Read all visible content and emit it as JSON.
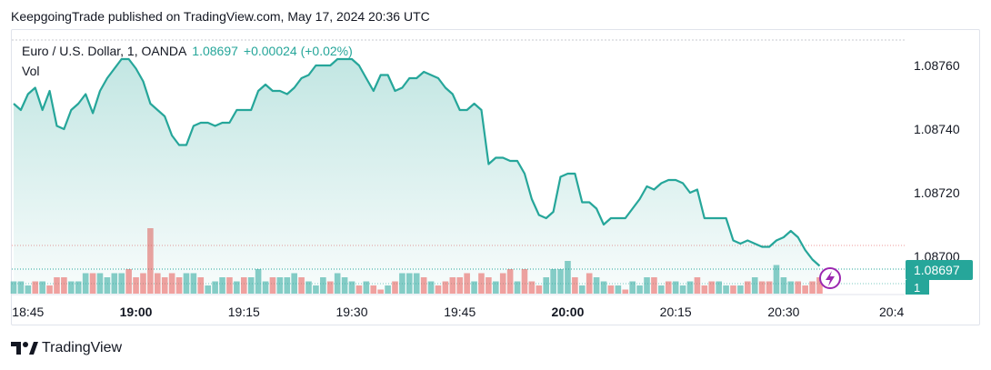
{
  "header": {
    "published": "KeepgoingTrade published on TradingView.com, May 17, 2024 20:36 UTC"
  },
  "legend": {
    "symbol": "Euro / U.S. Dollar, 1, OANDA",
    "price": "1.08697",
    "change": "+0.00024 (+0.02%)",
    "volume_label": "Vol"
  },
  "footer": {
    "brand": "TradingView",
    "logo_icon": "tradingview-logo-icon"
  },
  "colors": {
    "line": "#26a69a",
    "up": "#26a69a",
    "down": "#ef5350",
    "price_tag": "#26a69a",
    "lightning": "#9c27b0"
  },
  "chart_data": {
    "type": "area",
    "ylim": [
      1.08688,
      1.08768
    ],
    "y_ticks": [
      "1.08760",
      "1.08740",
      "1.08720",
      "1.08700"
    ],
    "x_ticks": [
      {
        "label": "18:45",
        "bold": false,
        "t": 2
      },
      {
        "label": "19:00",
        "bold": true,
        "t": 17
      },
      {
        "label": "19:15",
        "bold": false,
        "t": 32
      },
      {
        "label": "19:30",
        "bold": false,
        "t": 47
      },
      {
        "label": "19:45",
        "bold": false,
        "t": 62
      },
      {
        "label": "20:00",
        "bold": true,
        "t": 77
      },
      {
        "label": "20:15",
        "bold": false,
        "t": 92
      },
      {
        "label": "20:30",
        "bold": false,
        "t": 107
      },
      {
        "label": "20:4",
        "bold": false,
        "t": 122
      }
    ],
    "price_label": "1.08697",
    "volume_tag": "1",
    "close": [
      1.08748,
      1.08746,
      1.08751,
      1.08753,
      1.08746,
      1.08752,
      1.08741,
      1.0874,
      1.08746,
      1.08748,
      1.08751,
      1.08745,
      1.08752,
      1.08756,
      1.08759,
      1.08762,
      1.08762,
      1.08759,
      1.08755,
      1.08748,
      1.08746,
      1.08744,
      1.08738,
      1.08735,
      1.08735,
      1.08741,
      1.08742,
      1.08742,
      1.08741,
      1.08742,
      1.08742,
      1.08746,
      1.08746,
      1.08746,
      1.08752,
      1.08754,
      1.08752,
      1.08752,
      1.08751,
      1.08753,
      1.08756,
      1.08757,
      1.0876,
      1.0876,
      1.0876,
      1.08762,
      1.08762,
      1.08762,
      1.0876,
      1.08756,
      1.08752,
      1.08757,
      1.08757,
      1.08752,
      1.08753,
      1.08756,
      1.08756,
      1.08758,
      1.08757,
      1.08756,
      1.08753,
      1.08751,
      1.08746,
      1.08746,
      1.08748,
      1.08746,
      1.08729,
      1.08731,
      1.08731,
      1.0873,
      1.0873,
      1.08726,
      1.08718,
      1.08713,
      1.08712,
      1.08714,
      1.08725,
      1.08726,
      1.08726,
      1.08717,
      1.08717,
      1.08715,
      1.0871,
      1.08712,
      1.08712,
      1.08712,
      1.08715,
      1.08718,
      1.08722,
      1.08721,
      1.08723,
      1.08724,
      1.08724,
      1.08723,
      1.0872,
      1.08721,
      1.08712,
      1.08712,
      1.08712,
      1.08712,
      1.08705,
      1.08704,
      1.08705,
      1.08704,
      1.08703,
      1.08703,
      1.08705,
      1.08706,
      1.08708,
      1.08706,
      1.08702,
      1.08699,
      1.08697
    ],
    "volume": [
      3,
      3,
      2,
      3,
      3,
      2,
      4,
      4,
      3,
      3,
      5,
      5,
      5,
      4,
      5,
      5,
      6,
      4,
      5,
      16,
      5,
      4,
      5,
      4,
      5,
      5,
      4,
      2,
      3,
      4,
      4,
      3,
      4,
      4,
      6,
      3,
      4,
      4,
      4,
      5,
      4,
      3,
      2,
      4,
      3,
      5,
      4,
      3,
      2,
      3,
      2,
      1,
      2,
      3,
      5,
      5,
      5,
      4,
      3,
      2,
      3,
      4,
      4,
      5,
      3,
      5,
      4,
      3,
      5,
      6,
      3,
      6,
      3,
      2,
      4,
      6,
      6,
      8,
      4,
      2,
      5,
      4,
      3,
      2,
      2,
      1,
      3,
      2,
      4,
      4,
      2,
      3,
      3,
      2,
      3,
      4,
      2,
      3,
      3,
      2,
      2,
      2,
      3,
      4,
      3,
      3,
      7,
      4,
      3,
      3,
      2,
      3,
      4
    ],
    "direction": [
      "u",
      "u",
      "u",
      "d",
      "u",
      "d",
      "d",
      "d",
      "u",
      "u",
      "u",
      "d",
      "u",
      "u",
      "u",
      "u",
      "d",
      "d",
      "d",
      "d",
      "d",
      "d",
      "d",
      "d",
      "u",
      "u",
      "d",
      "u",
      "u",
      "u",
      "d",
      "u",
      "d",
      "u",
      "u",
      "u",
      "d",
      "u",
      "u",
      "u",
      "d",
      "u",
      "u",
      "u",
      "d",
      "u",
      "u",
      "u",
      "d",
      "u",
      "d",
      "d",
      "u",
      "d",
      "u",
      "u",
      "u",
      "d",
      "u",
      "d",
      "d",
      "d",
      "d",
      "d",
      "u",
      "d",
      "d",
      "u",
      "d",
      "d",
      "u",
      "d",
      "d",
      "d",
      "u",
      "u",
      "u",
      "u",
      "d",
      "u",
      "d",
      "u",
      "u",
      "d",
      "u",
      "d",
      "u",
      "u",
      "u",
      "d",
      "u",
      "d",
      "u",
      "u",
      "u",
      "d",
      "d",
      "d",
      "u",
      "u",
      "d",
      "u",
      "d",
      "u",
      "d",
      "d",
      "u",
      "u",
      "u",
      "d",
      "d",
      "d",
      "d"
    ]
  }
}
